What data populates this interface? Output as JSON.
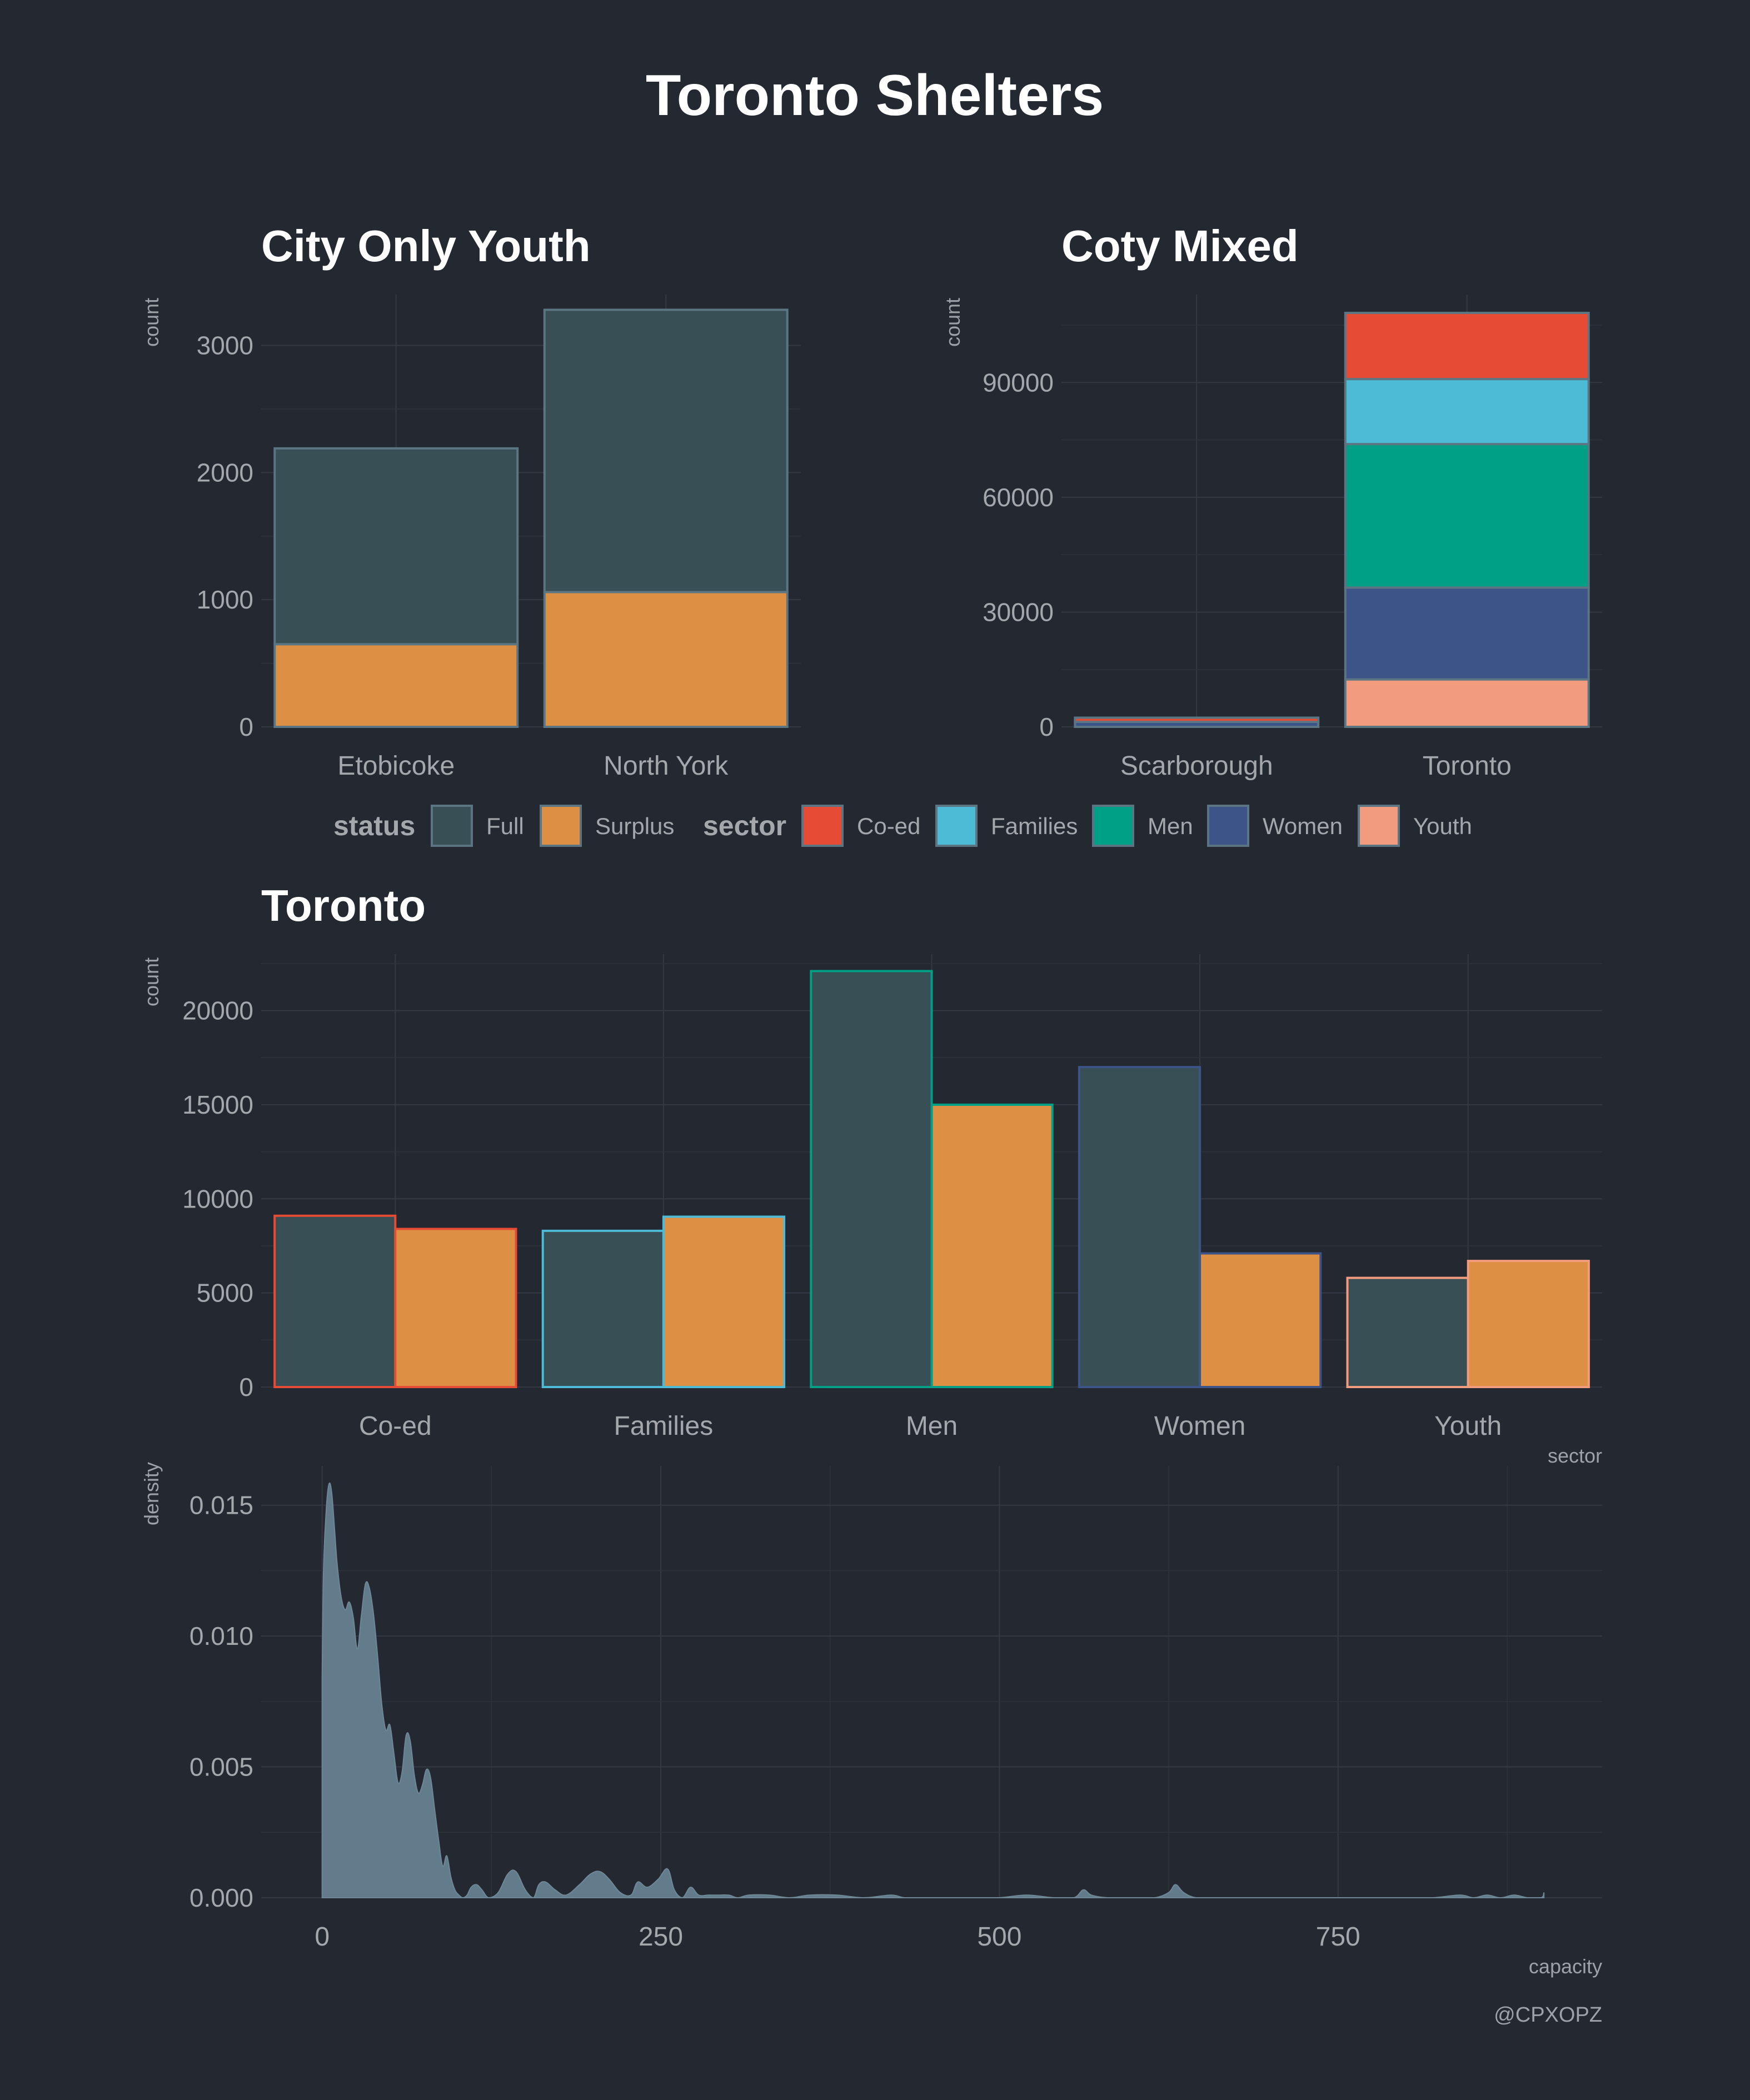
{
  "title": "Toronto Shelters",
  "caption": "@CPXOPZ",
  "legend": {
    "status_title": "status",
    "status_items": [
      {
        "label": "Full",
        "color": "#384f56"
      },
      {
        "label": "Surplus",
        "color": "#dd9043"
      }
    ],
    "sector_title": "sector",
    "sector_items": [
      {
        "label": "Co-ed",
        "color": "#e64b35"
      },
      {
        "label": "Families",
        "color": "#4dbbd5"
      },
      {
        "label": "Men",
        "color": "#00a087"
      },
      {
        "label": "Women",
        "color": "#3c5488"
      },
      {
        "label": "Youth",
        "color": "#f39b7f"
      }
    ]
  },
  "chart_data": [
    {
      "id": "city-only-youth",
      "type": "bar",
      "stacked": true,
      "title": "City Only Youth",
      "xlabel": "",
      "ylabel": "count",
      "categories": [
        "Etobicoke",
        "North York"
      ],
      "series": [
        {
          "name": "Surplus",
          "values": [
            650,
            1060
          ]
        },
        {
          "name": "Full",
          "values": [
            1540,
            2220
          ]
        }
      ],
      "ylim": [
        0,
        3400
      ],
      "yticks": [
        0,
        1000,
        2000,
        3000
      ],
      "outline_color": "#5b7582"
    },
    {
      "id": "coty-mixed",
      "type": "bar",
      "stacked": true,
      "title": "Coty Mixed",
      "xlabel": "",
      "ylabel": "count",
      "categories": [
        "Scarborough",
        "Toronto"
      ],
      "series": [
        {
          "name": "Youth",
          "values": [
            0,
            12400
          ]
        },
        {
          "name": "Women",
          "values": [
            1300,
            24000
          ]
        },
        {
          "name": "Men",
          "values": [
            0,
            37500
          ]
        },
        {
          "name": "Families",
          "values": [
            0,
            17000
          ]
        },
        {
          "name": "Co-ed",
          "values": [
            1100,
            17300
          ]
        }
      ],
      "ylim": [
        0,
        113000
      ],
      "yticks": [
        0,
        30000,
        60000,
        90000
      ],
      "outline_color": "#5b7582"
    },
    {
      "id": "toronto",
      "type": "bar",
      "grouped": true,
      "title": "Toronto",
      "xlabel": "sector",
      "ylabel": "count",
      "categories": [
        "Co-ed",
        "Families",
        "Men",
        "Women",
        "Youth"
      ],
      "series": [
        {
          "name": "Full",
          "values": [
            9100,
            8300,
            22100,
            17000,
            5800
          ]
        },
        {
          "name": "Surplus",
          "values": [
            8400,
            9050,
            15000,
            7100,
            6700
          ]
        }
      ],
      "ylim": [
        0,
        23000
      ],
      "yticks": [
        0,
        5000,
        10000,
        15000,
        20000
      ]
    },
    {
      "id": "capacity-density",
      "type": "area",
      "title": "",
      "xlabel": "capacity",
      "ylabel": "density",
      "x": [
        0,
        1,
        3,
        5,
        7,
        9,
        11,
        14,
        17,
        20,
        23,
        26,
        29,
        32,
        35,
        38,
        41,
        44,
        47,
        50,
        53,
        56,
        59,
        62,
        65,
        68,
        71,
        74,
        77,
        80,
        83,
        86,
        89,
        92,
        95,
        98,
        101,
        104,
        107,
        110,
        114,
        118,
        123,
        130,
        137,
        143,
        150,
        156,
        160,
        165,
        172,
        180,
        190,
        198,
        205,
        212,
        220,
        228,
        233,
        240,
        248,
        255,
        260,
        266,
        272,
        278,
        285,
        292,
        300,
        307,
        315,
        330,
        345,
        360,
        380,
        400,
        420,
        430,
        445,
        460,
        480,
        500,
        520,
        540,
        555,
        562,
        568,
        580,
        600,
        615,
        625,
        630,
        636,
        645,
        660,
        680,
        700,
        720,
        740,
        760,
        780,
        800,
        820,
        840,
        850,
        860,
        870,
        880,
        890,
        900,
        902
      ],
      "y": [
        0.0085,
        0.0125,
        0.0148,
        0.0158,
        0.0155,
        0.0142,
        0.0128,
        0.0115,
        0.011,
        0.0113,
        0.0107,
        0.0095,
        0.0108,
        0.012,
        0.0118,
        0.0108,
        0.0092,
        0.0074,
        0.0064,
        0.0066,
        0.0055,
        0.0044,
        0.0048,
        0.0062,
        0.006,
        0.0047,
        0.004,
        0.0043,
        0.0049,
        0.0046,
        0.0034,
        0.0022,
        0.0012,
        0.0016,
        0.0008,
        0.0003,
        0.0001,
        0.0,
        0.0001,
        0.0004,
        0.0005,
        0.0003,
        0.0,
        0.0002,
        0.0009,
        0.001,
        0.0003,
        0.0,
        0.0005,
        0.0006,
        0.0003,
        0.0001,
        0.0005,
        0.0009,
        0.001,
        0.0007,
        0.0002,
        0.0001,
        0.0006,
        0.0004,
        0.0007,
        0.0011,
        0.0003,
        0.0,
        0.0004,
        0.0001,
        0.0001,
        0.0001,
        0.0001,
        0.0,
        0.0001,
        0.0001,
        0.0,
        0.0001,
        0.0001,
        0.0,
        0.0001,
        0.0,
        0.0,
        0.0,
        0.0,
        0.0,
        0.0001,
        0.0,
        0.0,
        0.0003,
        0.0001,
        0.0,
        0.0,
        0.0,
        0.0002,
        0.0005,
        0.0002,
        0.0,
        0.0,
        0.0,
        0.0,
        0.0,
        0.0,
        0.0,
        0.0,
        0.0,
        0.0,
        0.0001,
        0.0,
        0.0001,
        0.0,
        0.0001,
        0.0,
        0.0,
        0.0002
      ],
      "xlim": [
        -45,
        945
      ],
      "ylim": [
        0,
        0.0165
      ],
      "xticks": [
        0,
        250,
        500,
        750
      ],
      "yticks": [
        0.0,
        0.005,
        0.01,
        0.015
      ],
      "ytick_labels": [
        "0.000",
        "0.005",
        "0.010",
        "0.015"
      ],
      "fill_color": "#637c8b"
    }
  ]
}
